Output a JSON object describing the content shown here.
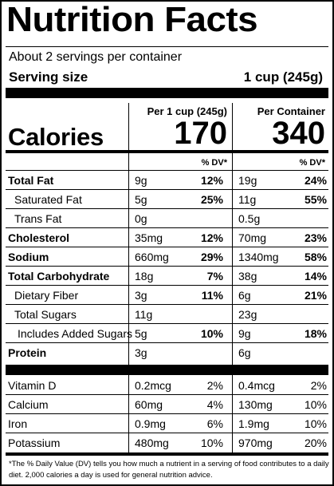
{
  "title": "Nutrition Facts",
  "servings": "About 2 servings per container",
  "serving_size_label": "Serving size",
  "serving_size_value": "1 cup (245g)",
  "col1_header": "Per 1 cup (245g)",
  "col2_header": "Per Container",
  "calories_label": "Calories",
  "calories_col1": "170",
  "calories_col2": "340",
  "dv_header": "% DV*",
  "nutrients": [
    {
      "name": "Total Fat",
      "bold": true,
      "indent": 0,
      "amt1": "9g",
      "dv1": "12%",
      "amt2": "19g",
      "dv2": "24%"
    },
    {
      "name": "Saturated Fat",
      "bold": false,
      "indent": 1,
      "amt1": "5g",
      "dv1": "25%",
      "amt2": "11g",
      "dv2": "55%"
    },
    {
      "name": "Trans Fat",
      "bold": false,
      "indent": 1,
      "amt1": "0g",
      "dv1": "",
      "amt2": "0.5g",
      "dv2": ""
    },
    {
      "name": "Cholesterol",
      "bold": true,
      "indent": 0,
      "amt1": "35mg",
      "dv1": "12%",
      "amt2": "70mg",
      "dv2": "23%"
    },
    {
      "name": "Sodium",
      "bold": true,
      "indent": 0,
      "amt1": "660mg",
      "dv1": "29%",
      "amt2": "1340mg",
      "dv2": "58%"
    },
    {
      "name": "Total Carbohydrate",
      "bold": true,
      "indent": 0,
      "amt1": "18g",
      "dv1": "7%",
      "amt2": "38g",
      "dv2": "14%"
    },
    {
      "name": "Dietary Fiber",
      "bold": false,
      "indent": 1,
      "amt1": "3g",
      "dv1": "11%",
      "amt2": "6g",
      "dv2": "21%"
    },
    {
      "name": "Total Sugars",
      "bold": false,
      "indent": 1,
      "amt1": "11g",
      "dv1": "",
      "amt2": "23g",
      "dv2": ""
    },
    {
      "name": "Includes Added Sugars",
      "bold": false,
      "indent": 2,
      "amt1": "5g",
      "dv1": "10%",
      "amt2": "9g",
      "dv2": "18%"
    },
    {
      "name": "Protein",
      "bold": true,
      "indent": 0,
      "amt1": "3g",
      "dv1": "",
      "amt2": "6g",
      "dv2": ""
    }
  ],
  "vitamins": [
    {
      "name": "Vitamin D",
      "amt1": "0.2mcg",
      "dv1": "2%",
      "amt2": "0.4mcg",
      "dv2": "2%"
    },
    {
      "name": "Calcium",
      "amt1": "60mg",
      "dv1": "4%",
      "amt2": "130mg",
      "dv2": "10%"
    },
    {
      "name": "Iron",
      "amt1": "0.9mg",
      "dv1": "6%",
      "amt2": "1.9mg",
      "dv2": "10%"
    },
    {
      "name": "Potassium",
      "amt1": "480mg",
      "dv1": "10%",
      "amt2": "970mg",
      "dv2": "20%"
    }
  ],
  "footnote": "*The % Daily Value (DV) tells you how much a nutrient in a serving of food contributes to a daily diet. 2,000 calories a day is used for general nutrition advice."
}
